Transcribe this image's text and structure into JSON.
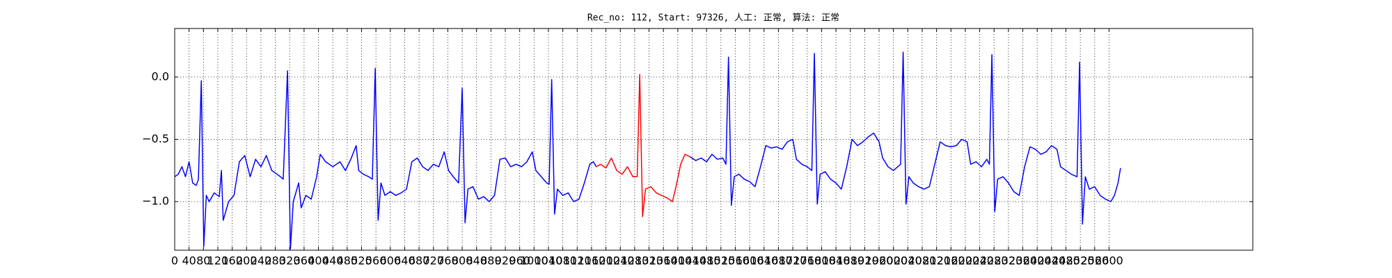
{
  "chart_data": {
    "type": "line",
    "title": "Rec_no: 112, Start: 97326, 人工: 正常, 算法: 正常",
    "xlim": [
      0,
      3000
    ],
    "ylim": [
      -1.39,
      0.39
    ],
    "xticks": [
      0,
      40,
      80,
      120,
      160,
      200,
      240,
      280,
      320,
      360,
      400,
      440,
      480,
      520,
      560,
      600,
      640,
      680,
      720,
      760,
      800,
      840,
      880,
      920,
      960,
      1000,
      1040,
      1080,
      1120,
      1160,
      1200,
      1240,
      1280,
      1320,
      1360,
      1400,
      1440,
      1480,
      1520,
      1560,
      1600,
      1640,
      1680,
      1720,
      1760,
      1800,
      1840,
      1880,
      1920,
      1960,
      2000,
      2040,
      2080,
      2120,
      2160,
      2200,
      2240,
      2280,
      2320,
      2360,
      2400,
      2440,
      2480,
      2520,
      2560,
      2600
    ],
    "yticks": [
      {
        "value": -1.0,
        "label": "−1.0"
      },
      {
        "value": -0.5,
        "label": "−0.5"
      },
      {
        "value": 0.0,
        "label": "0.0"
      }
    ],
    "grid": true,
    "series": [
      {
        "color": "#0000ff",
        "x": [
          0,
          10,
          20,
          30,
          40,
          50,
          60,
          66,
          74,
          81,
          88,
          96,
          110,
          124,
          130,
          135,
          150,
          165,
          180,
          195,
          210,
          225,
          240,
          255,
          270,
          285,
          294,
          302,
          314,
          322,
          330,
          345,
          352,
          365,
          380,
          395,
          405,
          420,
          440,
          460,
          475,
          490,
          505,
          512,
          525,
          540,
          550,
          558,
          566,
          574,
          585,
          600,
          615,
          630,
          645,
          660,
          675,
          690,
          705,
          720,
          735,
          750,
          762,
          775,
          790,
          800,
          808,
          816,
          830,
          845,
          860,
          875,
          890,
          905,
          920,
          935,
          950,
          965,
          980,
          995,
          1005,
          1020,
          1035,
          1042,
          1049,
          1057,
          1065,
          1080,
          1095,
          1110,
          1125,
          1140,
          1155,
          1165,
          1173,
          1294,
          1434,
          1450,
          1465,
          1480,
          1495,
          1510,
          1525,
          1534,
          1541,
          1549,
          1557,
          1570,
          1585,
          1600,
          1615,
          1630,
          1645,
          1660,
          1675,
          1690,
          1705,
          1720,
          1730,
          1745,
          1760,
          1773,
          1780,
          1788,
          1796,
          1810,
          1825,
          1840,
          1855,
          1870,
          1885,
          1900,
          1915,
          1930,
          1945,
          1960,
          1970,
          1985,
          2000,
          2020,
          2027,
          2035,
          2043,
          2055,
          2070,
          2085,
          2100,
          2115,
          2130,
          2145,
          2160,
          2175,
          2190,
          2205,
          2215,
          2230,
          2245,
          2260,
          2267,
          2274,
          2282,
          2290,
          2305,
          2320,
          2335,
          2350,
          2365,
          2380,
          2395,
          2410,
          2425,
          2440,
          2455,
          2465,
          2480,
          2495,
          2511,
          2518,
          2526,
          2534,
          2545,
          2560,
          2575,
          2590,
          2605,
          2615,
          2625,
          2632
        ],
        "values": [
          -0.8,
          -0.78,
          -0.72,
          -0.8,
          -0.68,
          -0.85,
          -0.87,
          -0.82,
          -0.03,
          -1.36,
          -0.95,
          -1.0,
          -0.93,
          -0.96,
          -0.75,
          -1.15,
          -1.0,
          -0.95,
          -0.68,
          -0.63,
          -0.8,
          -0.66,
          -0.72,
          -0.63,
          -0.75,
          -0.78,
          -0.8,
          -0.82,
          0.05,
          -1.38,
          -1.0,
          -0.85,
          -1.05,
          -0.95,
          -0.98,
          -0.8,
          -0.62,
          -0.68,
          -0.72,
          -0.68,
          -0.75,
          -0.66,
          -0.55,
          -0.75,
          -0.78,
          -0.8,
          -0.82,
          0.07,
          -1.15,
          -0.85,
          -0.95,
          -0.92,
          -0.95,
          -0.93,
          -0.9,
          -0.68,
          -0.65,
          -0.72,
          -0.75,
          -0.7,
          -0.72,
          -0.6,
          -0.75,
          -0.8,
          -0.85,
          -0.09,
          -1.17,
          -0.9,
          -0.88,
          -0.98,
          -0.96,
          -1.0,
          -0.95,
          -0.66,
          -0.65,
          -0.72,
          -0.7,
          -0.72,
          -0.68,
          -0.6,
          -0.75,
          -0.8,
          -0.85,
          -0.86,
          -0.02,
          -1.1,
          -0.9,
          -0.95,
          -0.93,
          -1.0,
          -0.98,
          -0.85,
          -0.7,
          -0.68,
          -0.72,
          null,
          -0.64,
          -0.67,
          -0.65,
          -0.68,
          -0.62,
          -0.66,
          -0.65,
          -0.7,
          0.16,
          -1.03,
          -0.8,
          -0.78,
          -0.82,
          -0.84,
          -0.88,
          -0.72,
          -0.55,
          -0.57,
          -0.56,
          -0.58,
          -0.52,
          -0.5,
          -0.66,
          -0.7,
          -0.72,
          -0.75,
          0.19,
          -1.02,
          -0.78,
          -0.76,
          -0.82,
          -0.85,
          -0.9,
          -0.72,
          -0.5,
          -0.55,
          -0.52,
          -0.48,
          -0.45,
          -0.52,
          -0.65,
          -0.72,
          -0.75,
          -0.7,
          0.2,
          -1.02,
          -0.8,
          -0.85,
          -0.88,
          -0.9,
          -0.88,
          -0.7,
          -0.52,
          -0.55,
          -0.56,
          -0.55,
          -0.5,
          -0.52,
          -0.7,
          -0.68,
          -0.72,
          -0.66,
          -0.7,
          0.18,
          -1.08,
          -0.82,
          -0.8,
          -0.85,
          -0.92,
          -0.95,
          -0.72,
          -0.56,
          -0.58,
          -0.62,
          -0.6,
          -0.55,
          -0.58,
          -0.72,
          -0.75,
          -0.78,
          -0.8,
          0.12,
          -1.18,
          -0.8,
          -0.9,
          -0.88,
          -0.95,
          -0.98,
          -1.0,
          -0.95,
          -0.85,
          -0.73
        ]
      },
      {
        "color": "#ff0000",
        "x": [
          1173,
          1185,
          1200,
          1215,
          1230,
          1245,
          1260,
          1275,
          1287,
          1294,
          1302,
          1310,
          1325,
          1340,
          1355,
          1370,
          1385,
          1395,
          1408,
          1420,
          1434
        ],
        "values": [
          -0.72,
          -0.7,
          -0.73,
          -0.65,
          -0.75,
          -0.78,
          -0.72,
          -0.8,
          -0.8,
          0.02,
          -1.12,
          -0.9,
          -0.88,
          -0.93,
          -0.95,
          -0.97,
          -1.0,
          -0.88,
          -0.7,
          -0.62,
          -0.64
        ]
      }
    ]
  }
}
